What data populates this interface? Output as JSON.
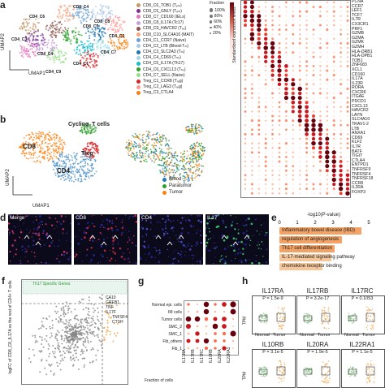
{
  "panels": {
    "a": "a",
    "b": "b",
    "d": "d",
    "e": "e",
    "f": "f",
    "g": "g",
    "h": "h"
  },
  "umap_a": {
    "xlabel": "UMAP1",
    "ylabel": "UMAP2",
    "cluster_labels": [
      "CD4_C6",
      "CD4_C3",
      "CD4_C4",
      "CD4_C9",
      "CD4_C1",
      "CD8_C4",
      "CD8_C7",
      "CD8_C8",
      "CD4_C2",
      "CD4_C7"
    ],
    "legend": [
      {
        "text": "CD8_C6_TOB1 (Tₑₘ)",
        "color": "#c49a6c"
      },
      {
        "text": "CD8_C5_GNLY (Tₑₘ)",
        "color": "#7b3294"
      },
      {
        "text": "CD8_C7_CD160 (IELs)",
        "color": "#e377c2"
      },
      {
        "text": "CD8_C8_IL17A (Tc17)",
        "color": "#c7a0d8"
      },
      {
        "text": "CD8_C9_HAVCR2 (Tₑₓ)",
        "color": "#8c564b"
      },
      {
        "text": "CD8_C10_SLC4A10 (MAIT)",
        "color": "#f4a582"
      },
      {
        "text": "CD4_C1_CCR7 (Naive)",
        "color": "#6a9fd6"
      },
      {
        "text": "CD4_C2_LTB (Blood-Tₘ)",
        "color": "#aec7e8"
      },
      {
        "text": "CD4_C3_SLC2A3 (Tₘ)",
        "color": "#1f77b4"
      },
      {
        "text": "CD4_C4_CD69 (Tₘᵣ)",
        "color": "#9edae5"
      },
      {
        "text": "CD4_C5_IL17A (Th17)",
        "color": "#17becf"
      },
      {
        "text": "CD4_C6_CXCL13 (Tₕₒ)",
        "color": "#2ca02c"
      },
      {
        "text": "CD4_C7_SELL (Naive)",
        "color": "#98df8a"
      },
      {
        "text": "Treg_C1_CCR8 (Tᵣₑg)",
        "color": "#d62728"
      },
      {
        "text": "Treg_C2_LAG3 (Tᵣₑg)",
        "color": "#ff9896"
      },
      {
        "text": "Treg_C3_CTLA4",
        "color": "#ff7f0e"
      }
    ]
  },
  "fraction_legend": {
    "title": "Fraction",
    "items": [
      "100%",
      "80%",
      "60%",
      "40%",
      "20%"
    ]
  },
  "colorbar_label": "Standardized expression levels",
  "genes": [
    "PCNA",
    "CCR7",
    "LEF1",
    "TCF7",
    "IL7R",
    "CX3CR1",
    "PRF1",
    "GZMB",
    "GZMA",
    "GZMK",
    "GZMH",
    "HLA-DRB1",
    "HLA-DPB1",
    "TOB1",
    "ZNF683",
    "XCL1",
    "CD160",
    "IL17A",
    "IL23R",
    "RORA",
    "CXCR6",
    "ITGAE",
    "PDCD1",
    "CXCL13",
    "HAVCR2",
    "LAYN",
    "SLC4A10",
    "TRAV1-2",
    "LTB",
    "ANXA1",
    "CD69",
    "KLF2",
    "IL7R",
    "BATF",
    "TIGIT",
    "CTLA4",
    "ENTPD1",
    "TNFRSF9",
    "TNFRSF4",
    "TNFRSF18",
    "CCR8",
    "IL2RA",
    "FOXP3"
  ],
  "umap_b": {
    "labels": [
      "Cycling_T cells",
      "CD8",
      "Treg",
      "CD4"
    ],
    "xlabel": "UMAP1",
    "ylabel": "UMAP2",
    "legend": [
      {
        "text": "Blood",
        "color": "#1f77b4"
      },
      {
        "text": "Paratumor",
        "color": "#2ca02c"
      },
      {
        "text": "Tumor",
        "color": "#ff7f0e"
      }
    ]
  },
  "fluorescence": {
    "panels": [
      "Merge",
      "CD8",
      "CD4",
      "IL17"
    ]
  },
  "enrichment": {
    "xlabel": "-log10(P-value)",
    "ticks": [
      0,
      1,
      2,
      3,
      4,
      5
    ],
    "bars": [
      {
        "term": "Inflammatory bowel disease (IBD)",
        "value": 4.6,
        "color": "#f2a365"
      },
      {
        "term": "regulation of angiogenesis",
        "value": 3.5,
        "color": "#f2a365"
      },
      {
        "term": "Th17 cell differentiation",
        "value": 3.1,
        "color": "#f2a365"
      },
      {
        "term": "IL-17-mediated signaling pathway",
        "value": 2.9,
        "color": "#f6c79a"
      },
      {
        "term": "chemokine receptor binding",
        "value": 2.4,
        "color": "#f6c79a"
      }
    ]
  },
  "scatter_f": {
    "ylabel": "logFC of CD8_C8_IL17A vs the rest of CD4+ T cells",
    "legend_title": "Th17 Specific Genes",
    "gene_labels": [
      "CA10",
      "GREB1",
      "TNF",
      "IL17F",
      "TNFSF4",
      "CTSH"
    ]
  },
  "dot_g": {
    "rows": [
      "Normal epi. cells",
      "IM cells",
      "Tumor cells",
      "SMC_2",
      "SMC_1",
      "Fib_others",
      "Fib_1"
    ],
    "cols": [
      "IL17RA",
      "IL17RB",
      "IL17RC",
      "IL10RB",
      "IL20RA",
      "IL22RA1"
    ],
    "footer": "Fraction of cells"
  },
  "boxplots_h": [
    {
      "title": "IL17RA",
      "pvalue": "P = 1.5e-9"
    },
    {
      "title": "IL17RB",
      "pvalue": "P = 3.2e-17"
    },
    {
      "title": "IL17RC",
      "pvalue": "P = 0.1053"
    },
    {
      "title": "IL10RB",
      "pvalue": "P = 3.1e-5"
    },
    {
      "title": "IL20RA",
      "pvalue": "P = 1.9e-5"
    },
    {
      "title": "IL22RA1",
      "pvalue": "P = 1.1e-5"
    }
  ],
  "box_groups": [
    "Normal",
    "Tumor"
  ],
  "box_ylabel": "TPM",
  "box_ylabel2": "TPM"
}
